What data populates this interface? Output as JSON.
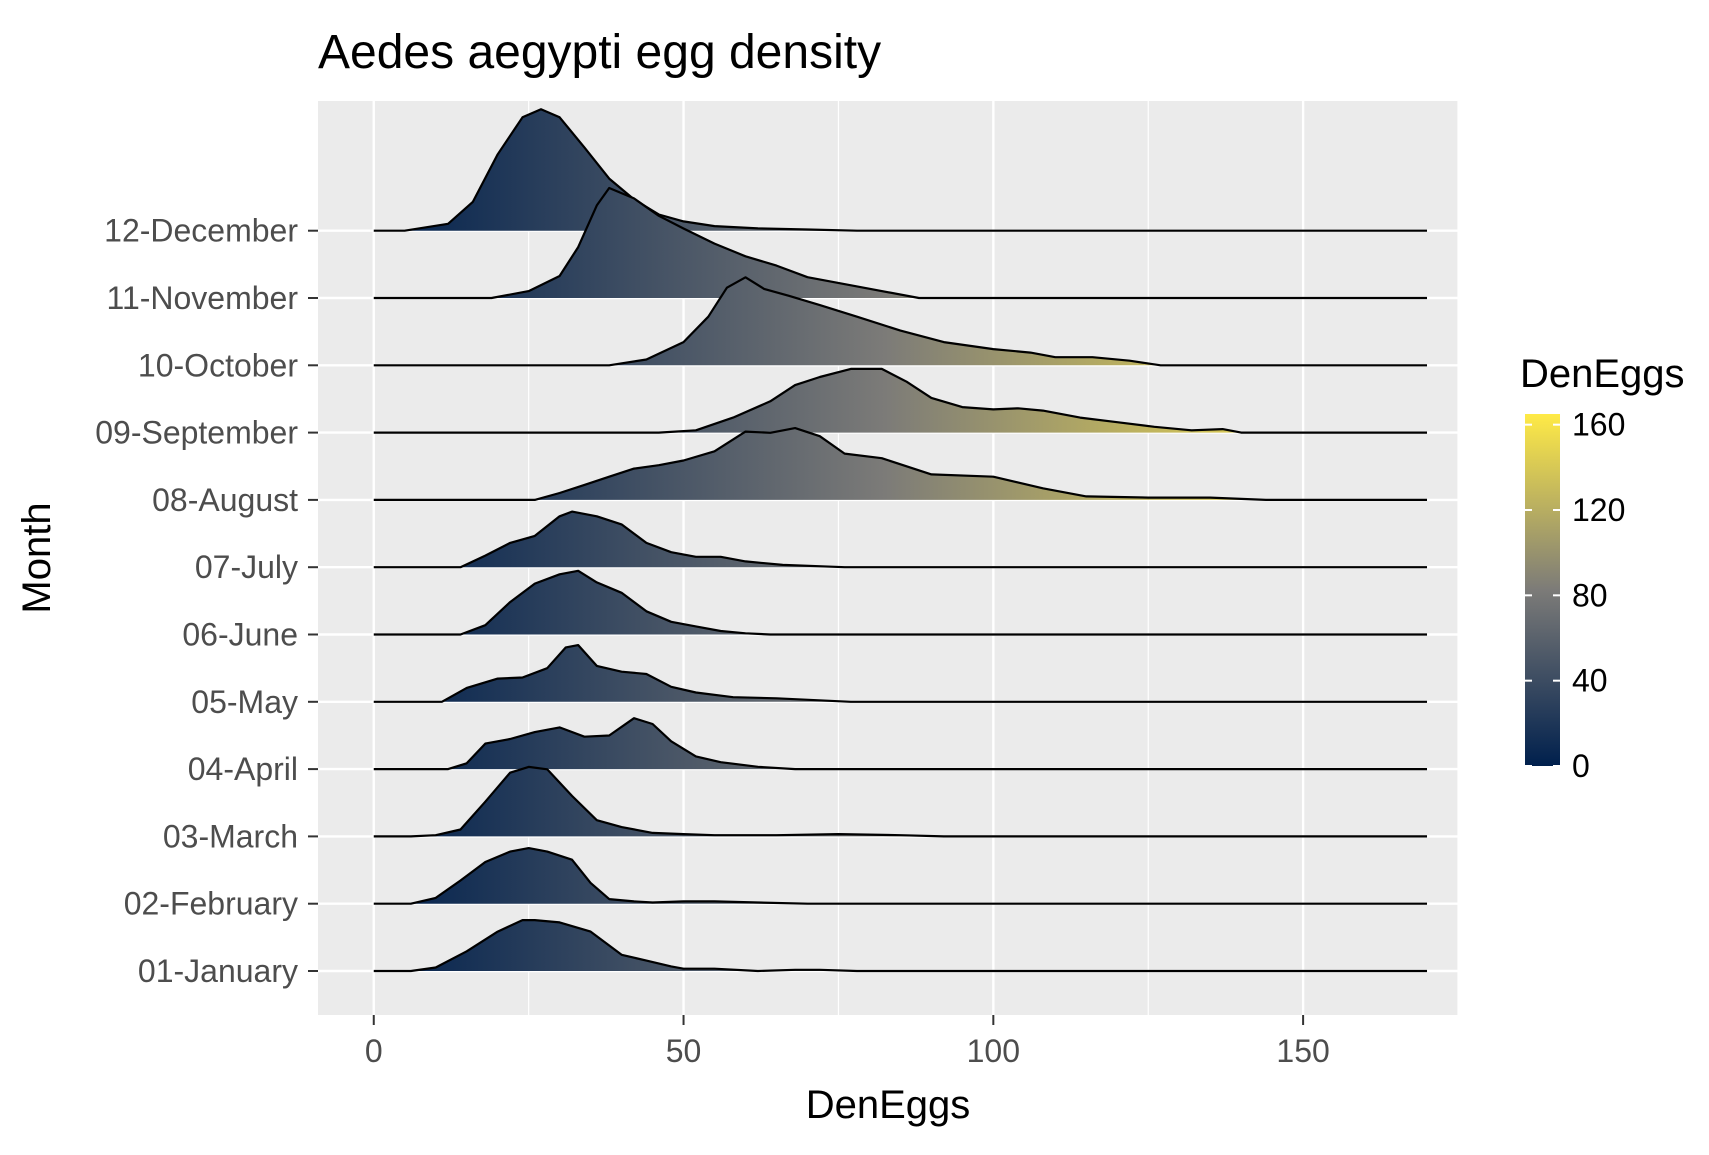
{
  "chart_data": {
    "type": "ridgeline",
    "title": "Aedes aegypti egg density",
    "xlabel": "DenEggs",
    "ylabel": "Month",
    "xlim": [
      -9,
      175
    ],
    "x_ticks": [
      0,
      50,
      100,
      150
    ],
    "grid": true,
    "fill_scale": {
      "title": "DenEggs",
      "ticks": [
        0,
        40,
        80,
        120,
        160
      ],
      "range": [
        0,
        165
      ],
      "colors": [
        "#00204d",
        "#7c7b78",
        "#ffea46"
      ],
      "placement": "right"
    },
    "categories": [
      "01-January",
      "02-February",
      "03-March",
      "04-April",
      "05-May",
      "06-June",
      "07-July",
      "08-August",
      "09-September",
      "10-October",
      "11-November",
      "12-December"
    ],
    "series": [
      {
        "category": "01-January",
        "x": [
          6,
          10,
          15,
          20,
          24,
          26,
          30,
          35,
          40,
          44,
          48,
          50,
          55,
          62,
          68,
          72,
          78
        ],
        "density": [
          0,
          0.03,
          0.17,
          0.34,
          0.44,
          0.44,
          0.42,
          0.34,
          0.14,
          0.09,
          0.04,
          0.02,
          0.02,
          0,
          0.01,
          0.01,
          0
        ]
      },
      {
        "category": "02-February",
        "x": [
          6,
          10,
          14,
          18,
          22,
          25,
          28,
          32,
          35,
          38,
          42,
          45,
          50,
          55,
          62,
          70
        ],
        "density": [
          0,
          0.05,
          0.2,
          0.36,
          0.45,
          0.48,
          0.45,
          0.38,
          0.18,
          0.04,
          0.02,
          0.01,
          0.02,
          0.02,
          0.01,
          0
        ]
      },
      {
        "category": "03-March",
        "x": [
          6,
          10,
          14,
          18,
          22,
          25,
          28,
          32,
          36,
          40,
          45,
          50,
          55,
          65,
          75,
          85,
          92
        ],
        "density": [
          0,
          0.01,
          0.06,
          0.3,
          0.55,
          0.6,
          0.58,
          0.35,
          0.14,
          0.08,
          0.03,
          0.02,
          0.01,
          0.01,
          0.02,
          0.01,
          0
        ]
      },
      {
        "category": "04-April",
        "x": [
          12,
          15,
          18,
          22,
          26,
          30,
          34,
          38,
          42,
          45,
          48,
          52,
          56,
          62,
          68
        ],
        "density": [
          0,
          0.05,
          0.22,
          0.26,
          0.32,
          0.36,
          0.28,
          0.29,
          0.44,
          0.39,
          0.24,
          0.11,
          0.06,
          0.02,
          0
        ]
      },
      {
        "category": "05-May",
        "x": [
          11,
          15,
          20,
          24,
          28,
          31,
          33,
          36,
          40,
          44,
          48,
          52,
          58,
          65,
          77
        ],
        "density": [
          0,
          0.12,
          0.2,
          0.21,
          0.29,
          0.47,
          0.49,
          0.31,
          0.26,
          0.24,
          0.13,
          0.08,
          0.04,
          0.03,
          0
        ]
      },
      {
        "category": "06-June",
        "x": [
          14,
          18,
          22,
          26,
          30,
          33,
          36,
          40,
          44,
          48,
          52,
          56,
          60,
          64
        ],
        "density": [
          0,
          0.08,
          0.28,
          0.44,
          0.52,
          0.55,
          0.45,
          0.36,
          0.2,
          0.11,
          0.07,
          0.03,
          0.01,
          0
        ]
      },
      {
        "category": "07-July",
        "x": [
          14,
          18,
          22,
          26,
          30,
          32,
          36,
          40,
          44,
          48,
          52,
          56,
          60,
          66,
          76
        ],
        "density": [
          0,
          0.1,
          0.21,
          0.27,
          0.44,
          0.48,
          0.44,
          0.37,
          0.21,
          0.13,
          0.09,
          0.09,
          0.05,
          0.02,
          0
        ]
      },
      {
        "category": "08-August",
        "x": [
          26,
          30,
          34,
          38,
          42,
          46,
          50,
          55,
          60,
          64,
          68,
          72,
          76,
          82,
          90,
          100,
          108,
          115,
          125,
          135,
          144
        ],
        "density": [
          0,
          0.06,
          0.13,
          0.2,
          0.27,
          0.3,
          0.34,
          0.42,
          0.59,
          0.58,
          0.62,
          0.55,
          0.4,
          0.36,
          0.22,
          0.2,
          0.1,
          0.03,
          0.02,
          0.02,
          0
        ]
      },
      {
        "category": "09-September",
        "x": [
          46,
          52,
          58,
          64,
          68,
          72,
          77,
          82,
          86,
          90,
          95,
          100,
          104,
          108,
          114,
          120,
          126,
          132,
          137,
          140
        ],
        "density": [
          0,
          0.02,
          0.13,
          0.27,
          0.41,
          0.48,
          0.55,
          0.55,
          0.44,
          0.3,
          0.22,
          0.2,
          0.21,
          0.19,
          0.13,
          0.09,
          0.05,
          0.02,
          0.03,
          0
        ]
      },
      {
        "category": "10-October",
        "x": [
          38,
          44,
          50,
          54,
          57,
          60,
          63,
          67,
          72,
          78,
          85,
          92,
          100,
          106,
          110,
          116,
          122,
          127
        ],
        "density": [
          0,
          0.05,
          0.2,
          0.42,
          0.67,
          0.76,
          0.66,
          0.6,
          0.52,
          0.42,
          0.3,
          0.2,
          0.14,
          0.11,
          0.07,
          0.07,
          0.04,
          0
        ]
      },
      {
        "category": "11-November",
        "x": [
          19,
          25,
          30,
          33,
          36,
          38,
          42,
          46,
          50,
          55,
          60,
          65,
          70,
          78,
          88
        ],
        "density": [
          0,
          0.06,
          0.19,
          0.44,
          0.8,
          0.95,
          0.86,
          0.71,
          0.6,
          0.47,
          0.36,
          0.28,
          0.18,
          0.1,
          0
        ]
      },
      {
        "category": "12-December",
        "x": [
          5,
          12,
          16,
          20,
          24,
          27,
          30,
          34,
          38,
          42,
          46,
          50,
          55,
          62,
          70,
          78
        ],
        "density": [
          0,
          0.06,
          0.25,
          0.66,
          0.98,
          1.05,
          0.98,
          0.72,
          0.45,
          0.27,
          0.14,
          0.08,
          0.04,
          0.02,
          0.01,
          0
        ]
      }
    ]
  }
}
